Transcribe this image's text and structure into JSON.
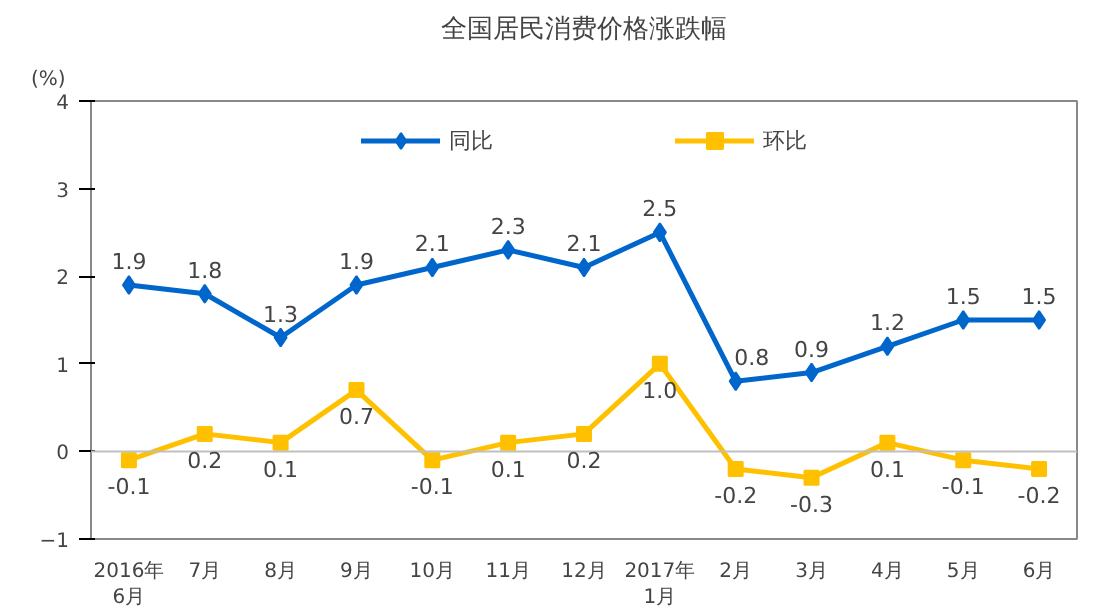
{
  "chart_data": {
    "type": "line",
    "title": "全国居民消费价格涨跌幅",
    "ylabel": "(%)",
    "categories": [
      "2016年\n6月",
      "7月",
      "8月",
      "9月",
      "10月",
      "11月",
      "12月",
      "2017年\n1月",
      "2月",
      "3月",
      "4月",
      "5月",
      "6月"
    ],
    "series": [
      {
        "name": "同比",
        "color": "#0066cc",
        "marker": "diamond",
        "values": [
          1.9,
          1.8,
          1.3,
          1.9,
          2.1,
          2.3,
          2.1,
          2.5,
          0.8,
          0.9,
          1.2,
          1.5,
          1.5
        ]
      },
      {
        "name": "环比",
        "color": "#ffc000",
        "marker": "square",
        "values": [
          -0.1,
          0.2,
          0.1,
          0.7,
          -0.1,
          0.1,
          0.2,
          1.0,
          -0.2,
          -0.3,
          0.1,
          -0.1,
          -0.2
        ],
        "value_labels": [
          "-0.1",
          "0.2",
          "0.1",
          "0.7",
          "-0.1",
          "0.1",
          "0.2",
          "1.0",
          "-0.2",
          "-0.3",
          "0.1",
          "-0.1",
          "-0.2"
        ]
      }
    ],
    "ylim": [
      -1,
      4
    ],
    "yticks": [
      -1,
      0,
      1,
      2,
      3,
      4
    ],
    "grid": false,
    "legend": "top",
    "data_labels": true,
    "ref_lines": [
      {
        "axis": "y",
        "value": 0,
        "color": "#bfbfbf"
      }
    ]
  }
}
